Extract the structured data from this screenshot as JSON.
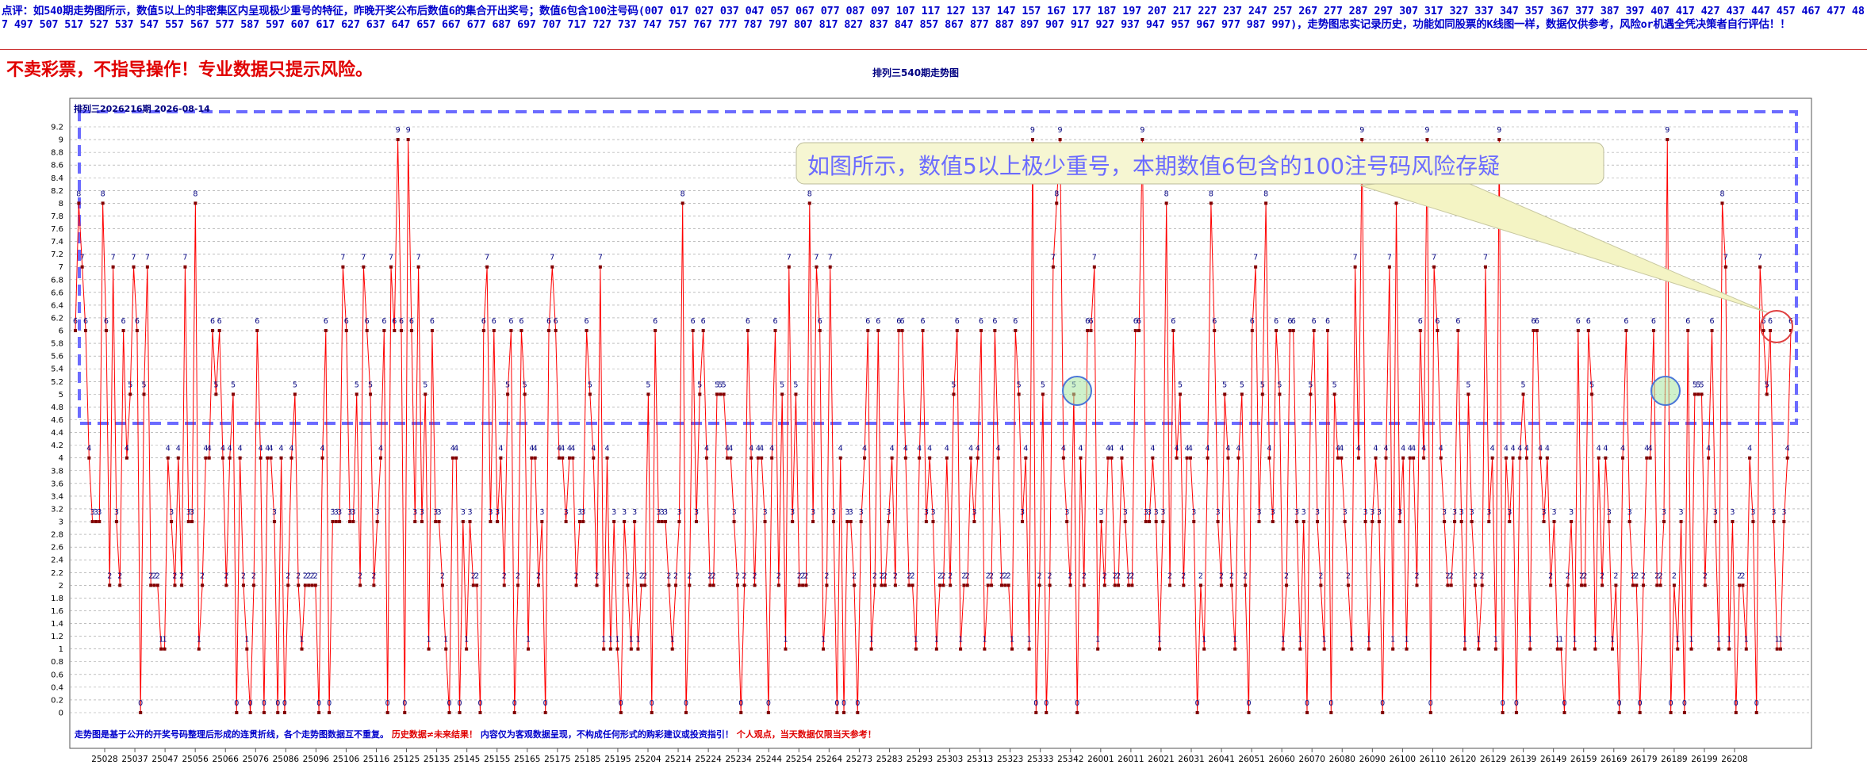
{
  "header": {
    "comment": "点评：如540期走势图所示，数值5以上的非密集区内呈现极少重号的特征，昨晚开奖公布后数值6的集合开出奖号；数值6包含100注号码(007  017  027  037  047  057  067  077  087  097  107  117  127  137  147  157  167  177  187  197  207  217  227  237  247  257  267  277  287  297  307  317  327  337  347  357  367  377  387  397  407  417  427  437  447  457  467  477  487  497  507  517  527  537  547  557  567  577  587  597  607  617  627  637  647  657  667  677  687  697  707  717  727  737  747  757  767  777  787  797  807  817  827  837  847  857  867  877  887  897  907  917  927  937  947  957  967  977  987  997)，走势图忠实记录历史，功能如同股票的K线图一样，数据仅供参考，风险or机遇全凭决策者自行评估！！",
    "warning": "不卖彩票，不指导操作！专业数据只提示风险。"
  },
  "chart_data": {
    "type": "line",
    "title": "排列三540期走势图",
    "subtitle": "排列三2026216期 2026-08-14",
    "y_ticks": [
      "0",
      "0.2",
      "0.4",
      "0.6",
      "0.8",
      "1",
      "1.2",
      "1.4",
      "1.6",
      "1.8",
      "2",
      "2.2",
      "2.4",
      "2.6",
      "2.8",
      "3",
      "3.2",
      "3.4",
      "3.6",
      "3.8",
      "4",
      "4.2",
      "4.4",
      "4.6",
      "4.8",
      "5",
      "5.2",
      "5.4",
      "5.6",
      "5.8",
      "6",
      "6.2",
      "6.4",
      "6.6",
      "6.8",
      "7",
      "7.2",
      "7.4",
      "7.6",
      "7.8",
      "8",
      "8.2",
      "8.4",
      "8.6",
      "8.8",
      "9",
      "9.2"
    ],
    "ylim": [
      0,
      9.2
    ],
    "x_tick_labels": [
      "25028",
      "25037",
      "25047",
      "25056",
      "25066",
      "25076",
      "25086",
      "25096",
      "25106",
      "25116",
      "25125",
      "25135",
      "25145",
      "25155",
      "25165",
      "25175",
      "25185",
      "25195",
      "25204",
      "25214",
      "25224",
      "25234",
      "25244",
      "25254",
      "25264",
      "25273",
      "25283",
      "25293",
      "25303",
      "25313",
      "25323",
      "25333",
      "25342",
      "26001",
      "26011",
      "26021",
      "26031",
      "26041",
      "26051",
      "26060",
      "26070",
      "26080",
      "26090",
      "26100",
      "26110",
      "26120",
      "26129",
      "26139",
      "26149",
      "26159",
      "26169",
      "26179",
      "26189",
      "26199",
      "26208"
    ],
    "series": [
      {
        "values": [
          6,
          8,
          7,
          6,
          4,
          3,
          3,
          3,
          8,
          6,
          2,
          7,
          3,
          2,
          6,
          4,
          5,
          7,
          6,
          0,
          5,
          7,
          2,
          2,
          2,
          1,
          1,
          4,
          3,
          2,
          4,
          2,
          7,
          3,
          3,
          8,
          1,
          2,
          4,
          4,
          6,
          5,
          6,
          4,
          2,
          4,
          5,
          0,
          4,
          2,
          1,
          0,
          2,
          6,
          4,
          0,
          4,
          4,
          3,
          0,
          4,
          0,
          2,
          4,
          5,
          2,
          1,
          2,
          2,
          2,
          2,
          0,
          4,
          6,
          0,
          3,
          3,
          3,
          7,
          6,
          3,
          3,
          5,
          2,
          7,
          6,
          5,
          2,
          3,
          4,
          6,
          0,
          7,
          6,
          9,
          6,
          0,
          9,
          6,
          3,
          7,
          3,
          5,
          1,
          6,
          3,
          3,
          2,
          1,
          0,
          4,
          4,
          0,
          3,
          1,
          3,
          2,
          2,
          0,
          6,
          7,
          3,
          6,
          3,
          4,
          2,
          5,
          6,
          0,
          2,
          6,
          5,
          1,
          4,
          4,
          2,
          3,
          0,
          6,
          7,
          6,
          4,
          4,
          3,
          4,
          4,
          2,
          3,
          3,
          6,
          5,
          4,
          2,
          7,
          1,
          4,
          1,
          3,
          1,
          0,
          3,
          2,
          1,
          3,
          1,
          2,
          2,
          5,
          0,
          6,
          3,
          3,
          3,
          2,
          1,
          2,
          3,
          8,
          0,
          2,
          6,
          3,
          5,
          6,
          4,
          2,
          2,
          5,
          5,
          5,
          4,
          4,
          3,
          2,
          0,
          2,
          6,
          4,
          2,
          4,
          4,
          3,
          0,
          4,
          6,
          2,
          5,
          1,
          7,
          3,
          5,
          2,
          2,
          2,
          8,
          3,
          7,
          6,
          1,
          2,
          7,
          3,
          0,
          4,
          0,
          3,
          3,
          2,
          0,
          3,
          4,
          6,
          1,
          2,
          6,
          2,
          2,
          3,
          4,
          2,
          6,
          6,
          4,
          2,
          2,
          1,
          4,
          6,
          3,
          4,
          3,
          1,
          2,
          2,
          4,
          2,
          5,
          6,
          1,
          2,
          2,
          4,
          3,
          4,
          6,
          1,
          2,
          2,
          6,
          4,
          2,
          2,
          2,
          1,
          6,
          5,
          3,
          4,
          1,
          9,
          0,
          2,
          5,
          0,
          2,
          7,
          8,
          9,
          4,
          3,
          2,
          5,
          0,
          4,
          2,
          6,
          6,
          7,
          1,
          3,
          2,
          4,
          4,
          2,
          2,
          4,
          3,
          2,
          2,
          6,
          6,
          9,
          3,
          3,
          4,
          3,
          1,
          3,
          8,
          2,
          6,
          4,
          5,
          2,
          4,
          4,
          3,
          0,
          2,
          1,
          4,
          8,
          6,
          3,
          2,
          5,
          4,
          2,
          1,
          4,
          5,
          2,
          0,
          6,
          7,
          3,
          5,
          8,
          4,
          3,
          6,
          5,
          1,
          2,
          6,
          6,
          3,
          1,
          3,
          0,
          5,
          6,
          3,
          2,
          1,
          6,
          0,
          5,
          4,
          4,
          3,
          2,
          1,
          7,
          4,
          9,
          3,
          1,
          3,
          4,
          3,
          0,
          4,
          7,
          1,
          8,
          3,
          4,
          1,
          4,
          4,
          2,
          6,
          4,
          9,
          0,
          7,
          6,
          4,
          3,
          2,
          2,
          3,
          6,
          3,
          1,
          5,
          3,
          2,
          1,
          2,
          7,
          3,
          4,
          1,
          9,
          0,
          4,
          3,
          4,
          0,
          4,
          5,
          4,
          1,
          6,
          6,
          4,
          3,
          4,
          2,
          3,
          1,
          1,
          0,
          2,
          3,
          1,
          6,
          2,
          2,
          6,
          5,
          1,
          4,
          2,
          4,
          3,
          1,
          2,
          0,
          4,
          6,
          3,
          2,
          2,
          0,
          2,
          4,
          4,
          6,
          2,
          2,
          3,
          9,
          0,
          2,
          1,
          3,
          0,
          6,
          1,
          5,
          5,
          5,
          2,
          4,
          6,
          3,
          1,
          8,
          7,
          1,
          3,
          0,
          2,
          2,
          1,
          4,
          3,
          0,
          7,
          6,
          5,
          6,
          3,
          1,
          1,
          3,
          4,
          6
        ]
      }
    ],
    "annotation": "如图所示，数值5以上极少重号，本期数值6包含的100注号码风险存疑",
    "footer": {
      "blue": "走势图是基于公开的开奖号码整理后形成的连贯折线，各个走势图数据互不重复。",
      "red1": "历史数据≠未来结果！",
      "blue2": "内容仅为客观数据呈现，不构成任何形式的购彩建议或投资指引！",
      "red2": "个人观点，当天数据仅限当天参考！"
    },
    "colors": {
      "line": "#ff0000",
      "marker": "#800000",
      "label": "#000080",
      "zone": "#6b6bff",
      "callout_fill": "#ffffd0",
      "callout_text": "#6b6bff"
    }
  }
}
